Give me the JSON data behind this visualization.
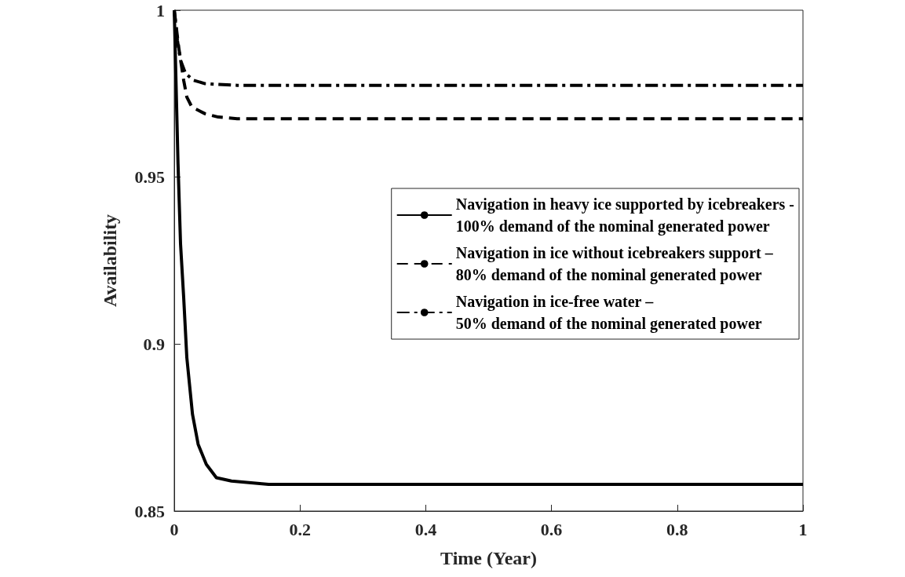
{
  "chart_data": {
    "type": "line",
    "xlabel": "Time (Year)",
    "ylabel": "Availability",
    "xlim": [
      0,
      1
    ],
    "ylim": [
      0.85,
      1
    ],
    "xticks": [
      0,
      0.2,
      0.4,
      0.6,
      0.8,
      1
    ],
    "yticks": [
      0.85,
      0.9,
      0.95,
      1
    ],
    "grid": false,
    "legend": "right",
    "marker": "none",
    "series": [
      {
        "name": "Navigation in heavy ice supported by icebreakers -\n100% demand of the nominal generated power",
        "color": "#000000",
        "line_style": "solid",
        "x": [
          0,
          0.006,
          0.01,
          0.015,
          0.02,
          0.029,
          0.038,
          0.051,
          0.067,
          0.091,
          0.15,
          0.3,
          0.5,
          0.7,
          1
        ],
        "values": [
          1,
          0.954,
          0.93,
          0.914,
          0.896,
          0.879,
          0.87,
          0.864,
          0.86,
          0.859,
          0.858,
          0.858,
          0.858,
          0.858,
          0.858
        ]
      },
      {
        "name": "Navigation in ice without icebreakers support –\n80% demand of the nominal generated power",
        "color": "#000000",
        "line_style": "dashed",
        "x": [
          0,
          0.007,
          0.015,
          0.02,
          0.028,
          0.049,
          0.07,
          0.1,
          0.4,
          0.7,
          1
        ],
        "values": [
          1,
          0.989,
          0.979,
          0.974,
          0.971,
          0.969,
          0.968,
          0.9675,
          0.9675,
          0.9675,
          0.9675
        ]
      },
      {
        "name": "Navigation in ice-free water –\n50% demand of the nominal generated power",
        "color": "#000000",
        "line_style": "dashdot",
        "x": [
          0,
          0.005,
          0.01,
          0.018,
          0.031,
          0.049,
          0.1,
          0.4,
          0.7,
          1
        ],
        "values": [
          1,
          0.991,
          0.985,
          0.981,
          0.979,
          0.978,
          0.9775,
          0.9775,
          0.9775,
          0.9775
        ]
      }
    ]
  }
}
